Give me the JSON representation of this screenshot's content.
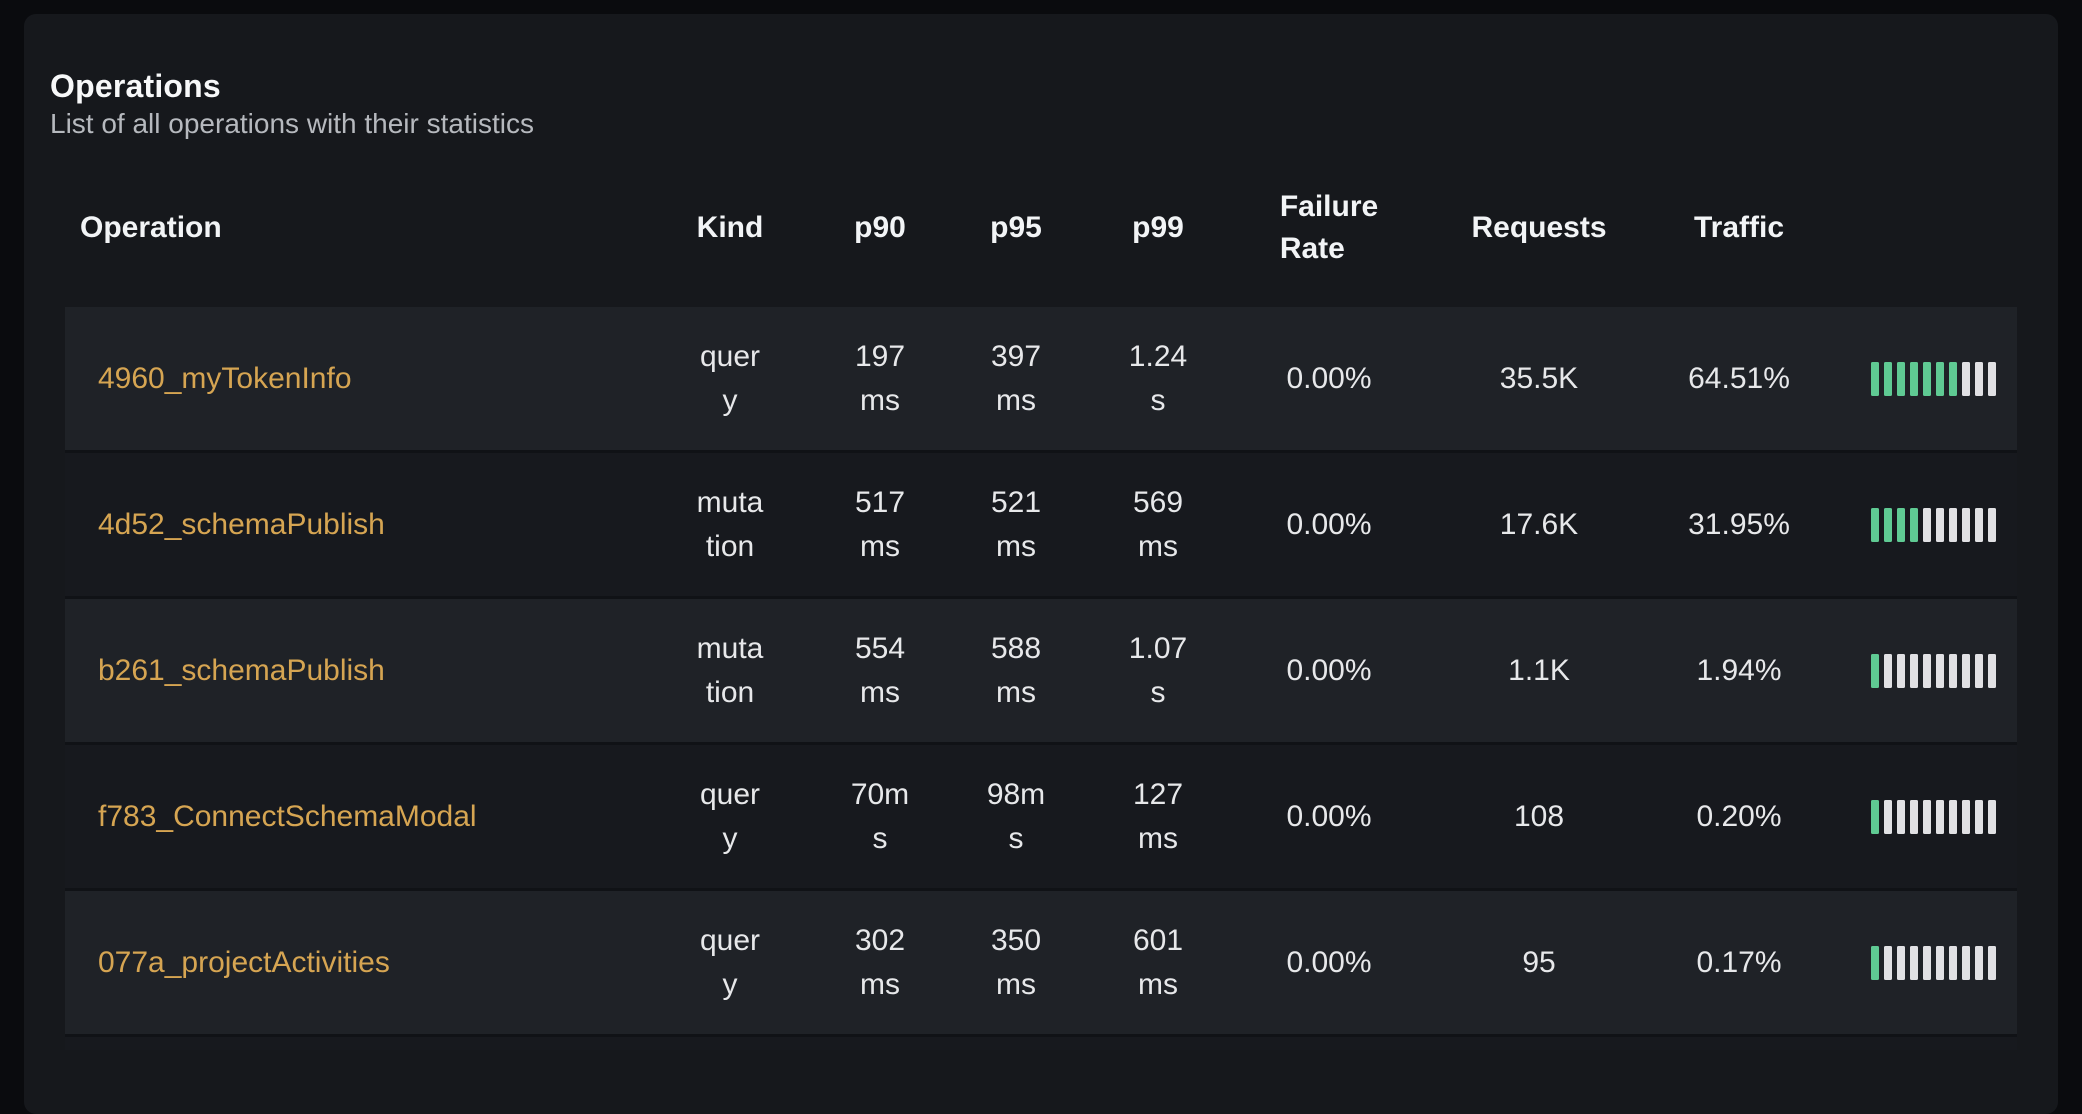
{
  "card": {
    "title": "Operations",
    "subtitle": "List of all operations with their statistics"
  },
  "table": {
    "columns": [
      {
        "key": "operation",
        "label": "Operation"
      },
      {
        "key": "kind",
        "label": "Kind"
      },
      {
        "key": "p90",
        "label": "p90"
      },
      {
        "key": "p95",
        "label": "p95"
      },
      {
        "key": "p99",
        "label": "p99"
      },
      {
        "key": "failure_rate",
        "label": "Failure Rate"
      },
      {
        "key": "requests",
        "label": "Requests"
      },
      {
        "key": "traffic",
        "label": "Traffic"
      }
    ],
    "rows": [
      {
        "operation": "4960_myTokenInfo",
        "kind": "query",
        "p90": "197ms",
        "p95": "397ms",
        "p99": "1.24s",
        "failure_rate": "0.00%",
        "requests": "35.5K",
        "traffic": "64.51%",
        "bars_filled": 7,
        "bars_total": 10
      },
      {
        "operation": "4d52_schemaPublish",
        "kind": "mutation",
        "p90": "517ms",
        "p95": "521ms",
        "p99": "569ms",
        "failure_rate": "0.00%",
        "requests": "17.6K",
        "traffic": "31.95%",
        "bars_filled": 4,
        "bars_total": 10
      },
      {
        "operation": "b261_schemaPublish",
        "kind": "mutation",
        "p90": "554ms",
        "p95": "588ms",
        "p99": "1.07s",
        "failure_rate": "0.00%",
        "requests": "1.1K",
        "traffic": "1.94%",
        "bars_filled": 1,
        "bars_total": 10
      },
      {
        "operation": "f783_ConnectSchemaModal",
        "kind": "query",
        "p90": "70ms",
        "p95": "98ms",
        "p99": "127ms",
        "failure_rate": "0.00%",
        "requests": "108",
        "traffic": "0.20%",
        "bars_filled": 1,
        "bars_total": 10
      },
      {
        "operation": "077a_projectActivities",
        "kind": "query",
        "p90": "302ms",
        "p95": "350ms",
        "p99": "601ms",
        "failure_rate": "0.00%",
        "requests": "95",
        "traffic": "0.17%",
        "bars_filled": 1,
        "bars_total": 10
      }
    ]
  },
  "colors": {
    "accent_link": "#d6a552",
    "bar_filled": "#5fca93",
    "bar_empty": "#e1e1e4",
    "row_odd": "#1f2227",
    "row_even": "#17191e",
    "card_background": "#16181c",
    "page_background": "#0a0b0e"
  }
}
